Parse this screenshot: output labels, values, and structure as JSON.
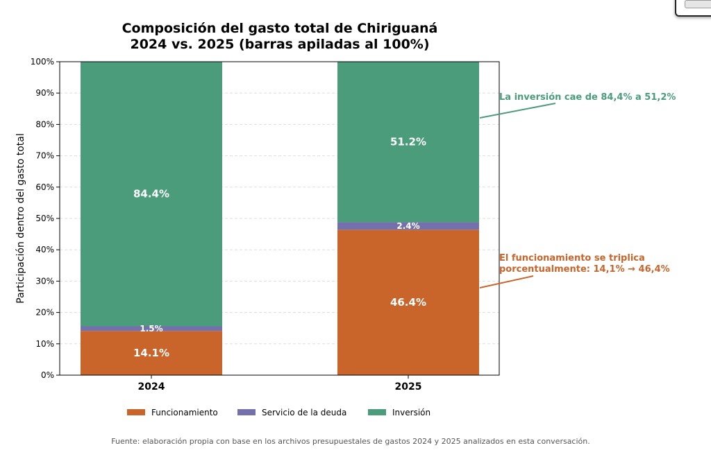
{
  "chart_data": {
    "type": "bar",
    "stacked": true,
    "title": "Composición del gasto total de Chiriguaná",
    "subtitle": "2024 vs. 2025 (barras apiladas al 100%)",
    "xlabel": "",
    "ylabel": "Participación dentro del gasto total",
    "ylim": [
      0,
      100
    ],
    "yticks": [
      "0%",
      "10%",
      "20%",
      "30%",
      "40%",
      "50%",
      "60%",
      "70%",
      "80%",
      "90%",
      "100%"
    ],
    "grid": true,
    "categories": [
      "2024",
      "2025"
    ],
    "series": [
      {
        "name": "Funcionamiento",
        "color": "#c9642a",
        "values": [
          14.1,
          46.4
        ],
        "labels": [
          "14.1%",
          "46.4%"
        ]
      },
      {
        "name": "Servicio de la deuda",
        "color": "#7470ac",
        "values": [
          1.5,
          2.4
        ],
        "labels": [
          "1.5%",
          "2.4%"
        ]
      },
      {
        "name": "Inversión",
        "color": "#4a9c7b",
        "values": [
          84.4,
          51.2
        ],
        "labels": [
          "84.4%",
          "51.2%"
        ]
      }
    ],
    "legend": "bottom-center",
    "annotations": [
      {
        "text": "La inversión cae de 84,4% a 51,2%",
        "color": "#4a9c7b"
      },
      {
        "text_lines": [
          "El funcionamiento se triplica",
          "porcentualmente: 14,1% → 46,4%"
        ],
        "color": "#c9642a"
      }
    ]
  },
  "source_note": "Fuente: elaboración propia con base en los archivos presupuestales de gastos 2024 y 2025 analizados en esta conversación."
}
